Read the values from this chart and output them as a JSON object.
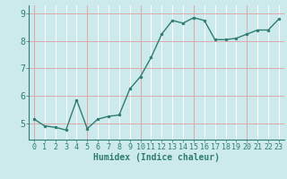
{
  "x": [
    0,
    1,
    2,
    3,
    4,
    5,
    6,
    7,
    8,
    9,
    10,
    11,
    12,
    13,
    14,
    15,
    16,
    17,
    18,
    19,
    20,
    21,
    22,
    23
  ],
  "y": [
    5.15,
    4.9,
    4.85,
    4.75,
    5.85,
    4.8,
    5.15,
    5.25,
    5.3,
    6.25,
    6.7,
    7.4,
    8.25,
    8.75,
    8.65,
    8.85,
    8.75,
    8.05,
    8.05,
    8.1,
    8.25,
    8.4,
    8.4,
    8.8
  ],
  "line_color": "#2e7d6e",
  "marker": "o",
  "marker_size": 2.0,
  "bg_color": "#cce9eb",
  "grid_color": "#ffffff",
  "xlabel": "Humidex (Indice chaleur)",
  "xlabel_fontsize": 7,
  "ylabel_ticks": [
    5,
    6,
    7,
    8,
    9
  ],
  "ylim": [
    4.4,
    9.3
  ],
  "xlim": [
    -0.5,
    23.5
  ],
  "red_grid_lines_v": [
    0,
    5,
    10,
    15,
    20
  ],
  "red_grid_lines_h": [
    5,
    6,
    7,
    8,
    9
  ],
  "red_grid_color": "#dba8a8",
  "tick_label_color": "#2e7d6e",
  "tick_label_fontsize": 6
}
